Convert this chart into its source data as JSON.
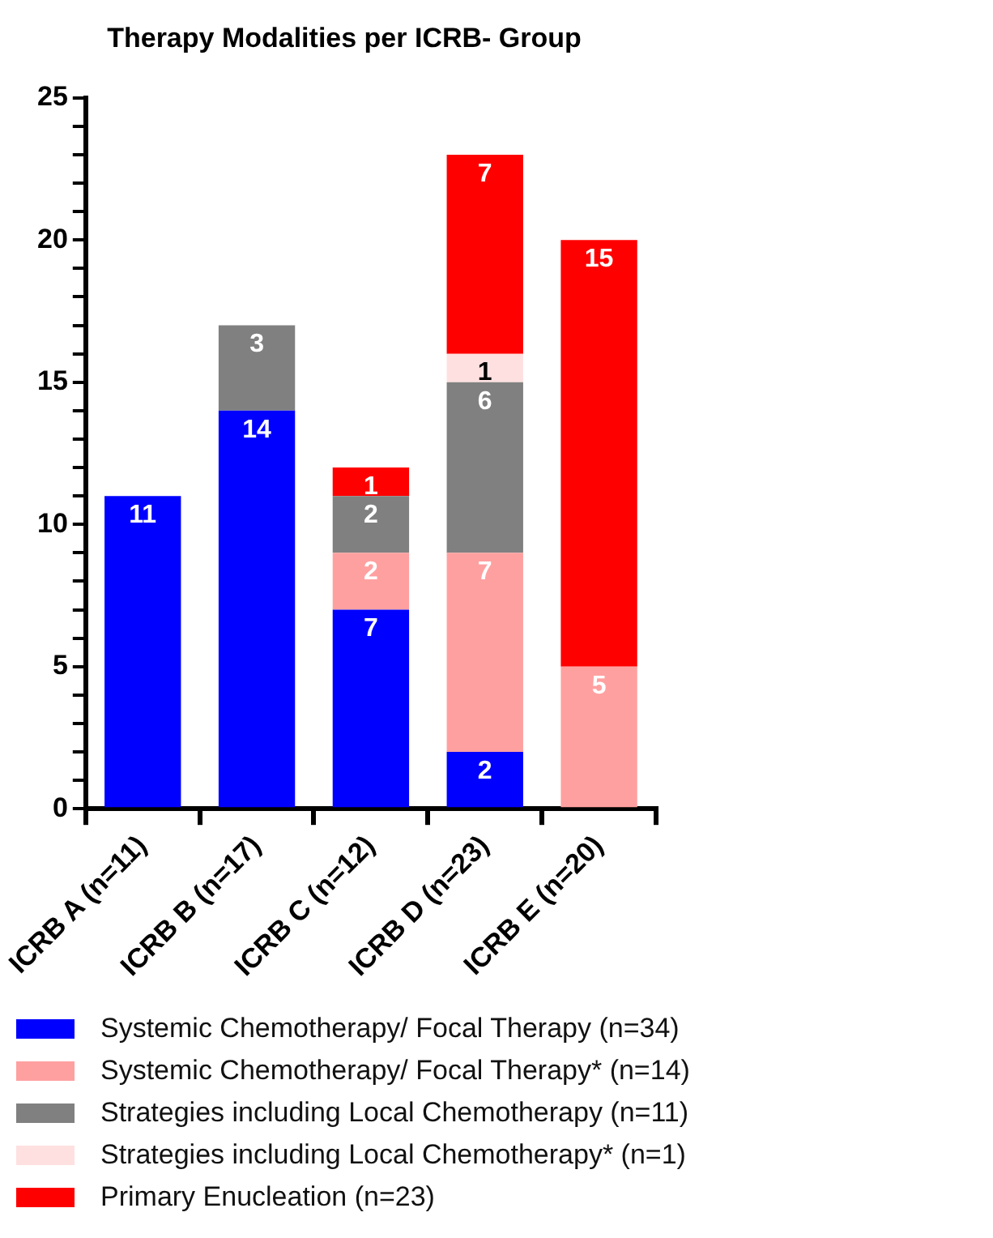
{
  "chart_data": {
    "type": "bar",
    "title": "Therapy Modalities per ICRB- Group",
    "categories": [
      "ICRB A (n=11)",
      "ICRB B (n=17)",
      "ICRB C (n=12)",
      "ICRB D (n=23)",
      "ICRB E (n=20)"
    ],
    "stacked": true,
    "series": [
      {
        "name": "Systemic Chemotherapy/ Focal Therapy (n=34)",
        "color": "#0000ff",
        "values": [
          11,
          14,
          7,
          2,
          null
        ]
      },
      {
        "name": "Systemic Chemotherapy/ Focal Therapy* (n=14)",
        "color": "#ffa0a0",
        "values": [
          null,
          null,
          2,
          7,
          5
        ]
      },
      {
        "name": "Strategies including Local Chemotherapy (n=11)",
        "color": "#808080",
        "values": [
          null,
          3,
          2,
          6,
          null
        ]
      },
      {
        "name": "Strategies including Local Chemotherapy* (n=1)",
        "color": "#ffe0e0",
        "values": [
          null,
          null,
          null,
          1,
          null
        ]
      },
      {
        "name": "Primary Enucleation (n=23)",
        "color": "#ff0000",
        "values": [
          null,
          null,
          1,
          7,
          15
        ]
      }
    ],
    "ylim": [
      0,
      25
    ],
    "yticks": [
      0,
      {
        "value": 1,
        "label": null
      },
      {
        "value": 2,
        "label": null
      },
      {
        "value": 3,
        "label": null
      },
      {
        "value": 4,
        "label": null
      },
      5,
      {
        "value": 6,
        "label": null
      },
      {
        "value": 7,
        "label": null
      },
      {
        "value": 8,
        "label": null
      },
      {
        "value": 9,
        "label": null
      },
      10,
      {
        "value": 11,
        "label": null
      },
      {
        "value": 12,
        "label": null
      },
      {
        "value": 13,
        "label": null
      },
      {
        "value": 14,
        "label": null
      },
      15,
      {
        "value": 16,
        "label": null
      },
      {
        "value": 17,
        "label": null
      },
      {
        "value": 18,
        "label": null
      },
      {
        "value": 19,
        "label": null
      },
      20,
      {
        "value": 21,
        "label": null
      },
      {
        "value": 22,
        "label": null
      },
      {
        "value": 23,
        "label": null
      },
      {
        "value": 24,
        "label": null
      },
      25
    ],
    "grid": false,
    "legend": "bottom",
    "data_labels": true
  }
}
